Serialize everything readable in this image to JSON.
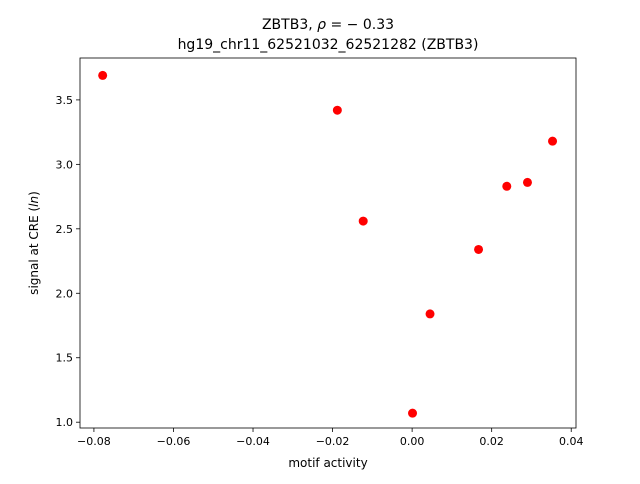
{
  "chart_data": {
    "type": "scatter",
    "title_line1": "ZBTB3, ρ = − 0.33",
    "title_line2": "hg19_chr11_62521032_62521282 (ZBTB3)",
    "xlabel": "motif activity",
    "ylabel": "signal at CRE (ln)",
    "xlim": [
      -0.0835,
      0.0412
    ],
    "ylim": [
      0.955,
      3.825
    ],
    "xticks": [
      -0.08,
      -0.06,
      -0.04,
      -0.02,
      0.0,
      0.02,
      0.04
    ],
    "xtick_labels": [
      "−0.08",
      "−0.06",
      "−0.04",
      "−0.02",
      "0.00",
      "0.02",
      "0.04"
    ],
    "yticks": [
      1.0,
      1.5,
      2.0,
      2.5,
      3.0,
      3.5
    ],
    "ytick_labels": [
      "1.0",
      "1.5",
      "2.0",
      "2.5",
      "3.0",
      "3.5"
    ],
    "grid": false,
    "marker_color": "#ff0000",
    "points": [
      {
        "x": -0.0778,
        "y": 3.69
      },
      {
        "x": -0.0188,
        "y": 3.42
      },
      {
        "x": -0.0123,
        "y": 2.56
      },
      {
        "x": 0.0001,
        "y": 1.07
      },
      {
        "x": 0.0045,
        "y": 1.84
      },
      {
        "x": 0.0167,
        "y": 2.34
      },
      {
        "x": 0.0238,
        "y": 2.83
      },
      {
        "x": 0.029,
        "y": 2.86
      },
      {
        "x": 0.0353,
        "y": 3.18
      }
    ]
  }
}
